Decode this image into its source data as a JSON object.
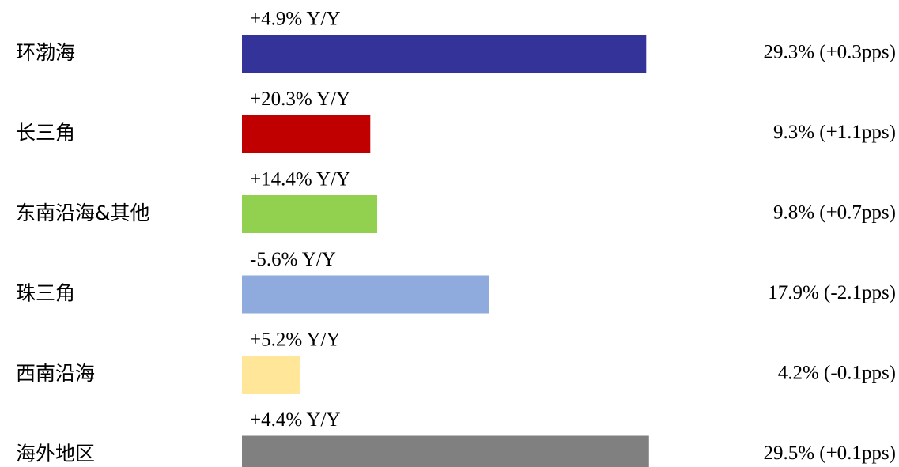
{
  "chart_data": {
    "type": "hbar",
    "categories": [
      "环渤海",
      "长三角",
      "东南沿海&其他",
      "珠三角",
      "西南沿海",
      "海外地区"
    ],
    "values": [
      29.3,
      9.3,
      9.8,
      17.9,
      4.2,
      29.5
    ],
    "value_labels": [
      "29.3% (+0.3pps)",
      "9.3% (+1.1pps)",
      "9.8% (+0.7pps)",
      "17.9% (-2.1pps)",
      "4.2% (-0.1pps)",
      "29.5% (+0.1pps)"
    ],
    "growth_labels": [
      "+4.9% Y/Y",
      "+20.3% Y/Y",
      "+14.4% Y/Y",
      "-5.6% Y/Y",
      "+5.2% Y/Y",
      "+4.4% Y/Y"
    ],
    "colors": [
      "#333399",
      "#c00000",
      "#92d050",
      "#8faadc",
      "#ffe699",
      "#808080"
    ]
  }
}
